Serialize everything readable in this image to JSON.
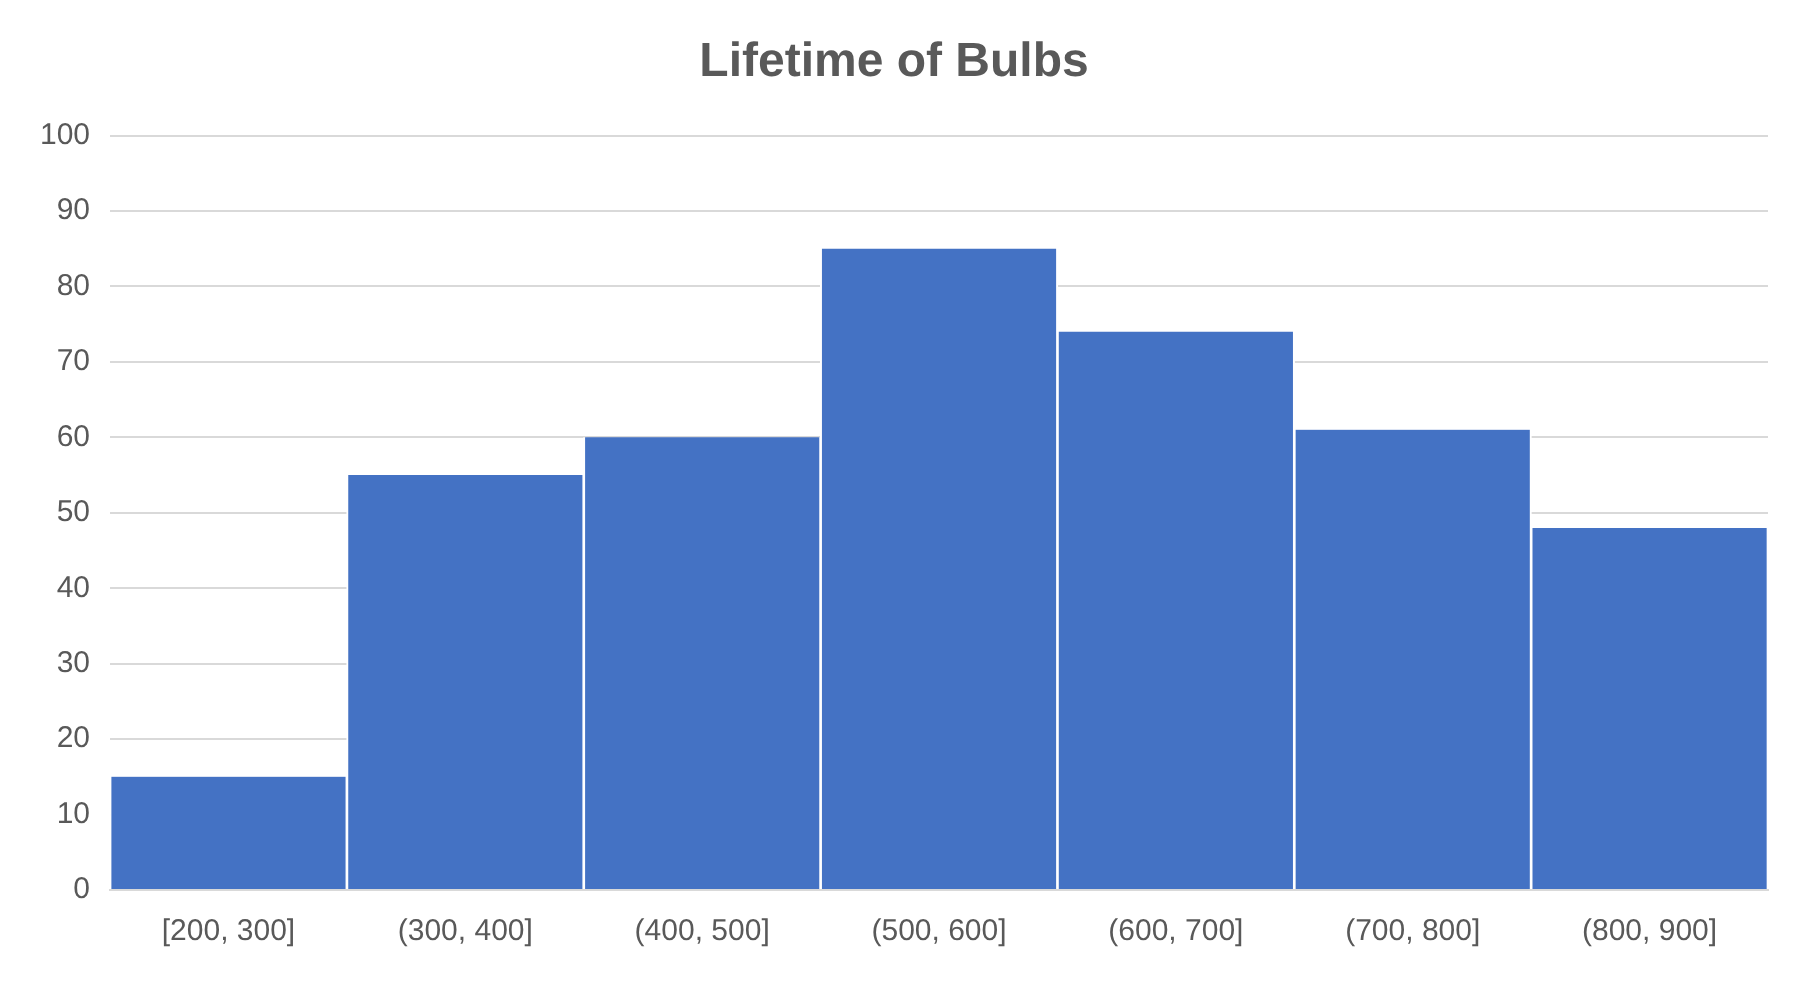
{
  "chart_data": {
    "type": "bar",
    "title": "Lifetime of Bulbs",
    "categories": [
      "[200, 300]",
      "(300, 400]",
      "(400, 500]",
      "(500, 600]",
      "(600, 700]",
      "(700, 800]",
      "(800, 900]"
    ],
    "values": [
      15,
      55,
      60,
      85,
      74,
      61,
      48
    ],
    "color": "#4472c4",
    "ylim": [
      0,
      100
    ],
    "yticks": [
      0,
      10,
      20,
      30,
      40,
      50,
      60,
      70,
      80,
      90,
      100
    ],
    "grid": "y",
    "legend": false
  }
}
